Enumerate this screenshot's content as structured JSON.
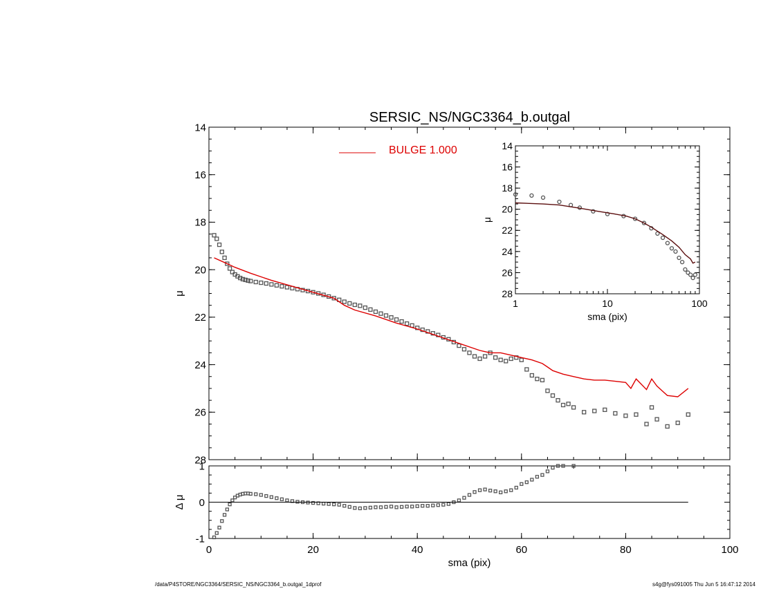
{
  "title": "SERSIC_NS/NGC3364_b.outgal",
  "footer": {
    "left": "/data/P4STORE/NGC3364/SERSIC_NS/NGC3364_b.outgal_1dprof",
    "right": "s4g@fys091005  Thu Jun  5 16:47:12 2014"
  },
  "colors": {
    "data": "#555555",
    "model": "#dd0000",
    "inset_model": "#5a0d0d",
    "axes": "#000000"
  },
  "chart_data": [
    {
      "type": "scatter",
      "name": "main-profile",
      "xlabel": "sma (pix)",
      "ylabel": "μ",
      "xlim": [
        0,
        100
      ],
      "ylim": [
        28,
        14
      ],
      "xticks": [
        0,
        20,
        40,
        60,
        80,
        100
      ],
      "yticks": [
        14,
        16,
        18,
        20,
        22,
        24,
        26,
        28
      ],
      "legend": {
        "label": "BULGE  1.000",
        "placement": "top-center"
      },
      "series": [
        {
          "name": "data",
          "style": "squares",
          "x": [
            1,
            1.5,
            2,
            2.5,
            3,
            3.5,
            4,
            4.5,
            5,
            5.5,
            6,
            6.5,
            7,
            7.5,
            8,
            9,
            10,
            11,
            12,
            13,
            14,
            15,
            16,
            17,
            18,
            19,
            20,
            21,
            22,
            23,
            24,
            25,
            26,
            27,
            28,
            29,
            30,
            31,
            32,
            33,
            34,
            35,
            36,
            37,
            38,
            39,
            40,
            41,
            42,
            43,
            44,
            45,
            46,
            47,
            48,
            49,
            50,
            51,
            52,
            53,
            54,
            55,
            56,
            57,
            58,
            59,
            60,
            61,
            62,
            63,
            64,
            65,
            66,
            67,
            68,
            69,
            70,
            72,
            74,
            76,
            78,
            80,
            82,
            84,
            85,
            86,
            88,
            90,
            92
          ],
          "y": [
            18.55,
            18.7,
            18.95,
            19.25,
            19.5,
            19.75,
            19.95,
            20.1,
            20.2,
            20.28,
            20.35,
            20.4,
            20.43,
            20.46,
            20.48,
            20.52,
            20.55,
            20.58,
            20.62,
            20.66,
            20.7,
            20.74,
            20.78,
            20.82,
            20.86,
            20.9,
            20.95,
            21.0,
            21.06,
            21.13,
            21.2,
            21.27,
            21.35,
            21.42,
            21.48,
            21.52,
            21.6,
            21.68,
            21.77,
            21.85,
            21.93,
            22.01,
            22.1,
            22.18,
            22.27,
            22.35,
            22.45,
            22.53,
            22.6,
            22.68,
            22.75,
            22.85,
            22.93,
            23.05,
            23.2,
            23.35,
            23.5,
            23.65,
            23.75,
            23.65,
            23.5,
            23.7,
            23.8,
            23.85,
            23.75,
            23.7,
            23.8,
            24.2,
            24.45,
            24.6,
            24.65,
            25.1,
            25.3,
            25.5,
            25.7,
            25.65,
            25.8,
            26.0,
            25.95,
            25.9,
            26.05,
            26.15,
            26.1,
            26.5,
            25.8,
            26.3,
            26.6,
            26.45,
            26.1
          ]
        },
        {
          "name": "BULGE  1.000",
          "style": "line",
          "x": [
            1,
            3,
            5,
            8,
            12,
            16,
            20,
            24,
            26,
            28,
            32,
            36,
            40,
            44,
            46,
            48,
            52,
            54,
            56,
            58,
            60,
            62,
            64,
            65,
            66,
            68,
            70,
            72,
            74,
            76,
            78,
            80,
            81,
            82,
            84,
            85,
            86,
            87,
            88,
            90,
            92
          ],
          "y": [
            19.5,
            19.7,
            19.9,
            20.15,
            20.45,
            20.7,
            20.95,
            21.2,
            21.5,
            21.7,
            21.95,
            22.25,
            22.5,
            22.8,
            22.95,
            23.1,
            23.4,
            23.5,
            23.5,
            23.6,
            23.7,
            23.8,
            23.95,
            24.1,
            24.25,
            24.4,
            24.5,
            24.6,
            24.65,
            24.65,
            24.7,
            24.75,
            25.0,
            24.6,
            25.05,
            24.6,
            24.9,
            25.1,
            25.3,
            25.35,
            25.0
          ]
        }
      ]
    },
    {
      "type": "scatter",
      "name": "residual",
      "xlabel": "sma (pix)",
      "ylabel": "Δ μ",
      "xlim": [
        0,
        100
      ],
      "ylim": [
        -1,
        1
      ],
      "xticks": [
        0,
        20,
        40,
        60,
        80,
        100
      ],
      "yticks": [
        -1,
        0,
        1
      ],
      "series": [
        {
          "name": "residual",
          "style": "squares",
          "x": [
            1,
            1.5,
            2,
            2.5,
            3,
            3.5,
            4,
            4.5,
            5,
            5.5,
            6,
            6.5,
            7,
            7.5,
            8,
            9,
            10,
            11,
            12,
            13,
            14,
            15,
            16,
            17,
            18,
            19,
            20,
            21,
            22,
            23,
            24,
            25,
            26,
            27,
            28,
            29,
            30,
            31,
            32,
            33,
            34,
            35,
            36,
            37,
            38,
            39,
            40,
            41,
            42,
            43,
            44,
            45,
            46,
            47,
            48,
            49,
            50,
            51,
            52,
            53,
            54,
            55,
            56,
            57,
            58,
            59,
            60,
            61,
            62,
            63,
            64,
            65,
            66,
            67,
            68,
            70
          ],
          "y": [
            -0.97,
            -0.85,
            -0.7,
            -0.52,
            -0.35,
            -0.2,
            -0.06,
            0.05,
            0.13,
            0.18,
            0.21,
            0.23,
            0.24,
            0.24,
            0.23,
            0.22,
            0.2,
            0.17,
            0.14,
            0.11,
            0.08,
            0.05,
            0.03,
            0.01,
            0.0,
            -0.01,
            -0.02,
            -0.03,
            -0.04,
            -0.05,
            -0.06,
            -0.07,
            -0.1,
            -0.13,
            -0.16,
            -0.17,
            -0.16,
            -0.15,
            -0.14,
            -0.14,
            -0.13,
            -0.12,
            -0.14,
            -0.13,
            -0.12,
            -0.12,
            -0.11,
            -0.1,
            -0.1,
            -0.09,
            -0.08,
            -0.07,
            -0.05,
            0.0,
            0.05,
            0.12,
            0.2,
            0.28,
            0.33,
            0.35,
            0.32,
            0.3,
            0.27,
            0.3,
            0.33,
            0.4,
            0.5,
            0.55,
            0.62,
            0.7,
            0.75,
            0.85,
            0.95,
            1.0,
            1.0,
            1.0
          ]
        }
      ],
      "zero_line": {
        "x": [
          0,
          92
        ],
        "y": 0
      }
    },
    {
      "type": "scatter",
      "name": "inset",
      "xlabel": "sma (pix)",
      "ylabel": "μ",
      "xscale": "log",
      "xlim": [
        1,
        100
      ],
      "ylim": [
        28,
        14
      ],
      "xticks": [
        1,
        10,
        100
      ],
      "yticks": [
        14,
        16,
        18,
        20,
        22,
        24,
        26,
        28
      ],
      "series": [
        {
          "name": "data",
          "style": "circles",
          "x": [
            1,
            1.5,
            2,
            3,
            4,
            5,
            7,
            10,
            15,
            20,
            25,
            30,
            35,
            40,
            45,
            50,
            55,
            60,
            65,
            70,
            75,
            80,
            85,
            90
          ],
          "y": [
            18.6,
            18.7,
            18.9,
            19.3,
            19.6,
            19.85,
            20.2,
            20.45,
            20.65,
            20.9,
            21.3,
            21.8,
            22.3,
            22.7,
            23.2,
            23.7,
            24.0,
            24.6,
            25.0,
            25.7,
            26.0,
            26.2,
            26.5,
            26.2
          ]
        },
        {
          "name": "model",
          "style": "line",
          "x": [
            1,
            2,
            3,
            5,
            8,
            12,
            16,
            20,
            25,
            30,
            40,
            50,
            60,
            70,
            80,
            85,
            90
          ],
          "y": [
            19.4,
            19.5,
            19.6,
            19.9,
            20.2,
            20.45,
            20.65,
            20.9,
            21.3,
            21.7,
            22.4,
            23.0,
            23.6,
            24.3,
            24.7,
            25.1,
            25.0
          ]
        }
      ]
    }
  ]
}
